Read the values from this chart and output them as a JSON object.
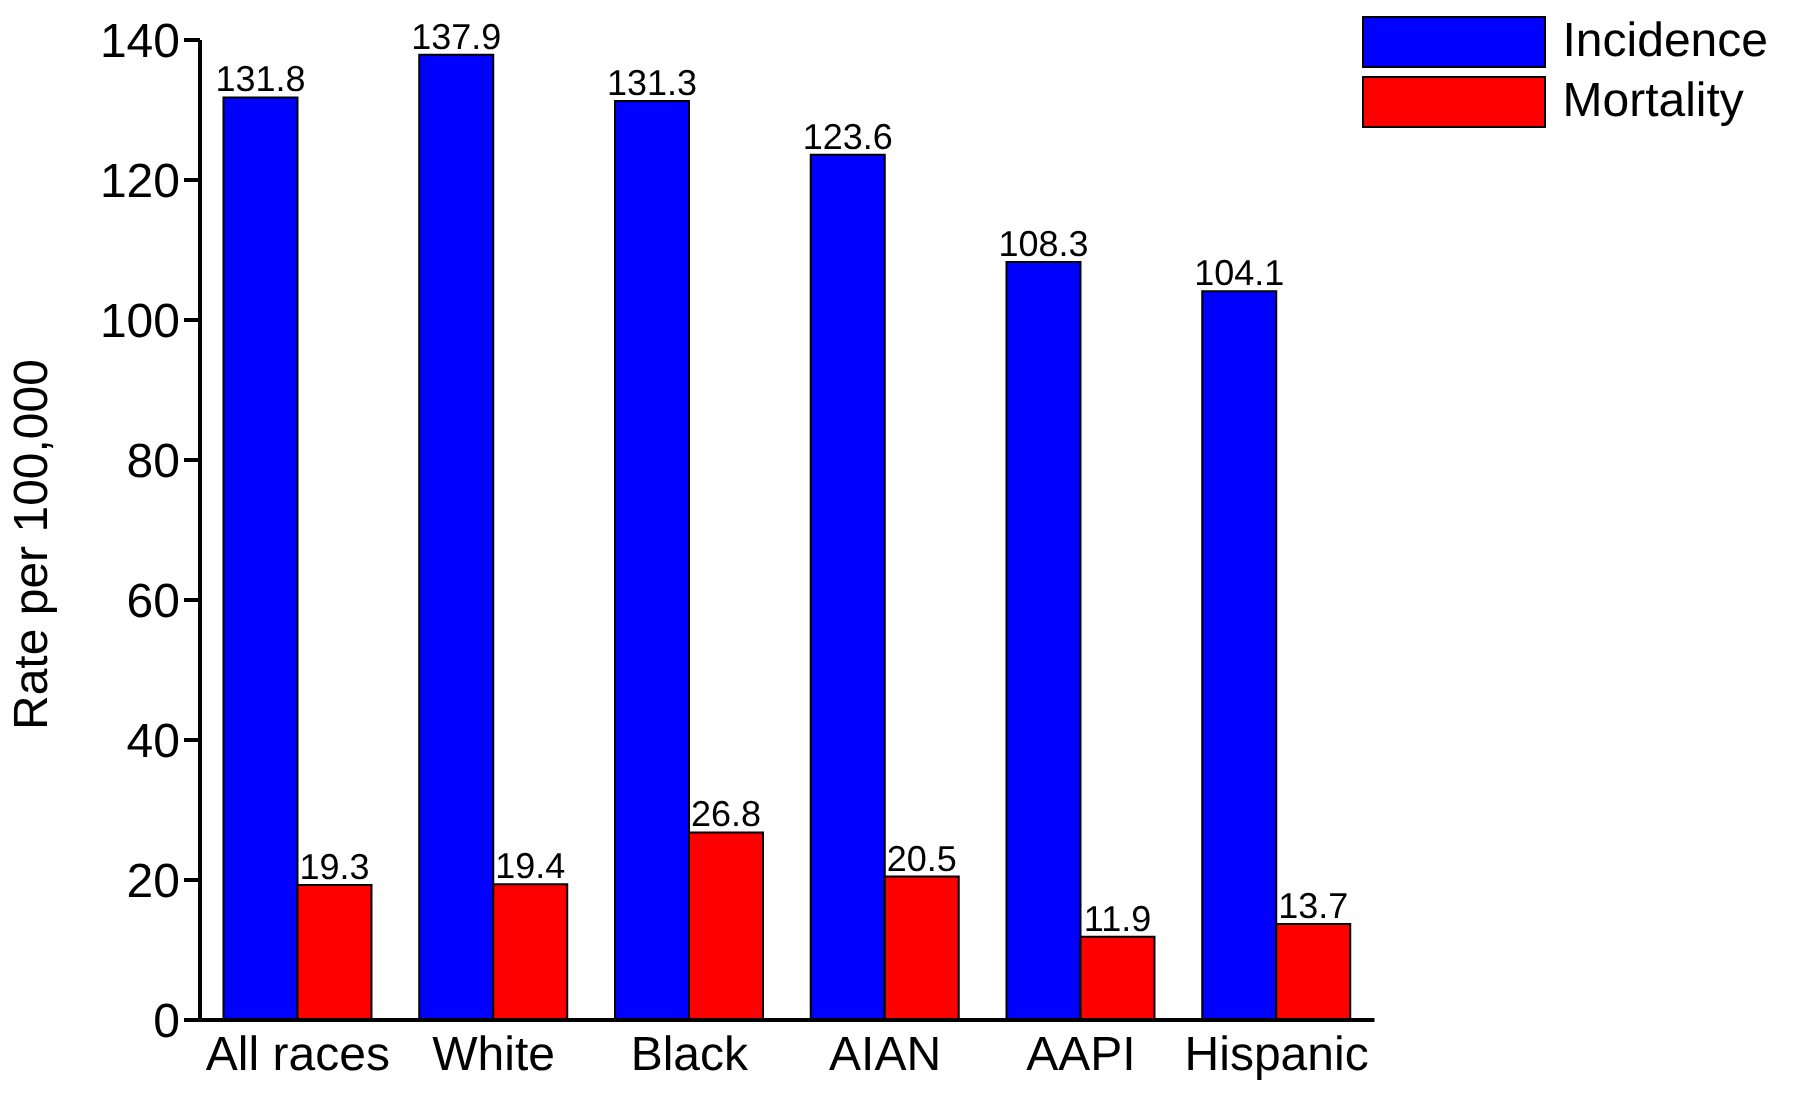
{
  "chart_data": {
    "type": "bar",
    "ylabel": "Rate per 100,000",
    "categories": [
      "All races",
      "White",
      "Black",
      "AIAN",
      "AAPI",
      "Hispanic"
    ],
    "series": [
      {
        "name": "Incidence",
        "color": "#0000ff",
        "values": [
          131.8,
          137.9,
          131.3,
          123.6,
          108.3,
          104.1
        ]
      },
      {
        "name": "Mortality",
        "color": "#ff0000",
        "values": [
          19.3,
          19.4,
          26.8,
          20.5,
          11.9,
          13.7
        ]
      }
    ],
    "ylim": [
      0,
      140
    ],
    "yticks": [
      0,
      20,
      40,
      60,
      80,
      100,
      120,
      140
    ],
    "grid": false,
    "legend": "top right",
    "data_labels": true
  }
}
